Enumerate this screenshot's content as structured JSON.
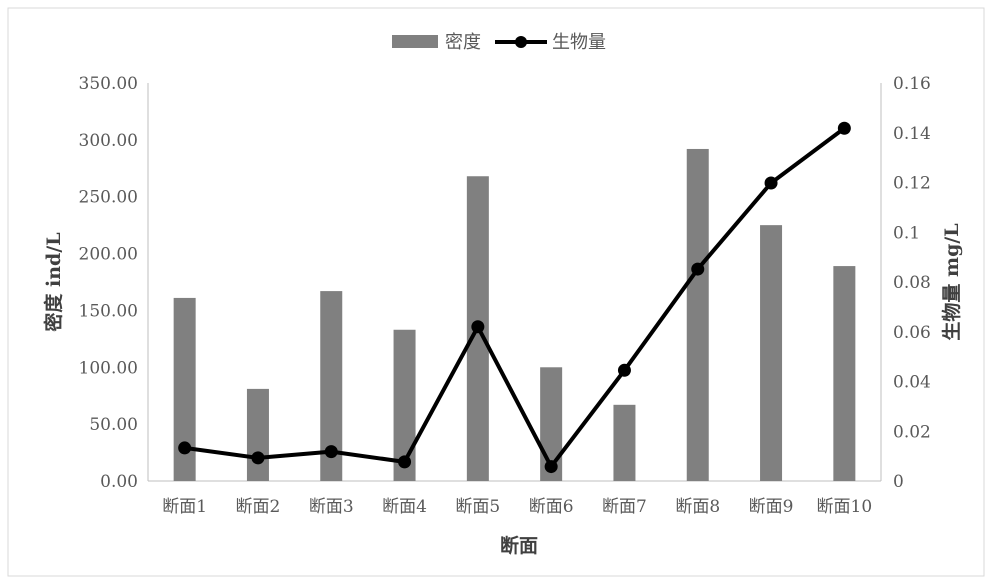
{
  "chart_data": {
    "type": "bar",
    "categories": [
      "断面1",
      "断面2",
      "断面3",
      "断面4",
      "断面5",
      "断面6",
      "断面7",
      "断面8",
      "断面9",
      "断面10"
    ],
    "series": [
      {
        "name": "密度",
        "type": "bar",
        "axis": "left",
        "color": "#808080",
        "values": [
          161,
          81,
          167,
          133,
          268,
          100,
          67,
          292,
          225,
          189
        ]
      },
      {
        "name": "生物量",
        "type": "line",
        "axis": "right",
        "color": "#000000",
        "values": [
          0.0133,
          0.0093,
          0.0118,
          0.0077,
          0.062,
          0.0058,
          0.0445,
          0.0852,
          0.1198,
          0.1418
        ]
      }
    ],
    "xlabel": "断面",
    "ylabel": "密度 ind/L",
    "y2label": "生物量 mg/L",
    "ylim": [
      0,
      350
    ],
    "y2lim": [
      0,
      0.16
    ],
    "yticks": [
      "0.00",
      "50.00",
      "100.00",
      "150.00",
      "200.00",
      "250.00",
      "300.00",
      "350.00"
    ],
    "y2ticks": [
      "0",
      "0.02",
      "0.04",
      "0.06",
      "0.08",
      "0.1",
      "0.12",
      "0.14",
      "0.16"
    ],
    "grid": false,
    "legend_position": "top"
  }
}
